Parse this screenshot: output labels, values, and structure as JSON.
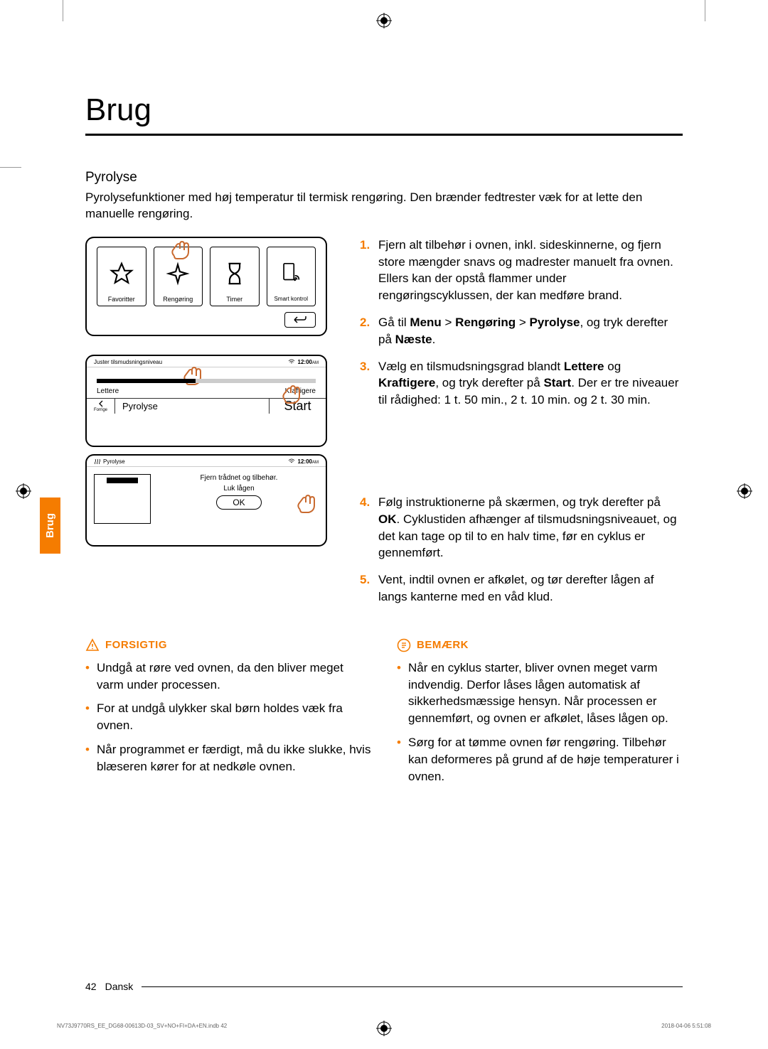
{
  "sideTab": "Brug",
  "title": "Brug",
  "section": "Pyrolyse",
  "intro": "Pyrolysefunktioner med høj temperatur til termisk rengøring. Den brænder fedtrester væk for at lette den manuelle rengøring.",
  "menu": {
    "items": [
      "Favoritter",
      "Rengøring",
      "Timer",
      "Smart kontrol"
    ]
  },
  "screen2": {
    "header": "Juster tilsmudsningsniveau",
    "time": "12:00",
    "ampm": "AM",
    "left": "Lettere",
    "right": "Kraftigere",
    "title": "Pyrolyse",
    "back": "Forrige",
    "start": "Start"
  },
  "screen3": {
    "header": "Pyrolyse",
    "time": "12:00",
    "ampm": "AM",
    "line1": "Fjern trådnet og tilbehør.",
    "line2": "Luk lågen",
    "ok": "OK"
  },
  "steps": [
    {
      "n": "1.",
      "html": "Fjern alt tilbehør i ovnen, inkl. sideskinnerne, og fjern store mængder snavs og madrester manuelt fra ovnen. Ellers kan der opstå flammer under rengøringscyklussen, der kan medføre brand."
    },
    {
      "n": "2.",
      "html": "Gå til <b>Menu</b> > <b>Rengøring</b> > <b>Pyrolyse</b>, og tryk derefter på <b>Næste</b>."
    },
    {
      "n": "3.",
      "html": "Vælg en tilsmudsningsgrad blandt <b>Lettere</b> og <b>Kraftigere</b>, og tryk derefter på <b>Start</b>. Der er tre niveauer til rådighed: 1 t. 50 min., 2 t. 10 min. og 2 t. 30 min."
    },
    {
      "n": "4.",
      "html": "Følg instruktionerne på skærmen, og tryk derefter på <b>OK</b>. Cyklustiden afhænger af tilsmudsningsniveauet, og det kan tage op til to en halv time, før en cyklus er gennemført."
    },
    {
      "n": "5.",
      "html": "Vent, indtil ovnen er afkølet, og tør derefter lågen af langs kanterne med en våd klud."
    }
  ],
  "forsigtig": {
    "title": "FORSIGTIG",
    "items": [
      "Undgå at røre ved ovnen, da den bliver meget varm under processen.",
      "For at undgå ulykker skal børn holdes væk fra ovnen.",
      "Når programmet er færdigt, må du ikke slukke, hvis blæseren kører for at nedkøle ovnen."
    ]
  },
  "bemaerk": {
    "title": "BEMÆRK",
    "items": [
      "Når en cyklus starter, bliver ovnen meget varm indvendig. Derfor låses lågen automatisk af sikkerhedsmæssige hensyn. Når processen er gennemført, og ovnen er afkølet, låses lågen op.",
      "Sørg for at tømme ovnen før rengøring. Tilbehør kan deformeres på grund af de høje temperaturer i ovnen."
    ]
  },
  "pageNum": "42",
  "lang": "Dansk",
  "metaFile": "NV73J9770RS_EE_DG68-00613D-03_SV+NO+FI+DA+EN.indb   42",
  "metaDate": "2018-04-06     5:51:08",
  "colors": {
    "accent": "#f57c00",
    "hand": "#c96a2f"
  }
}
